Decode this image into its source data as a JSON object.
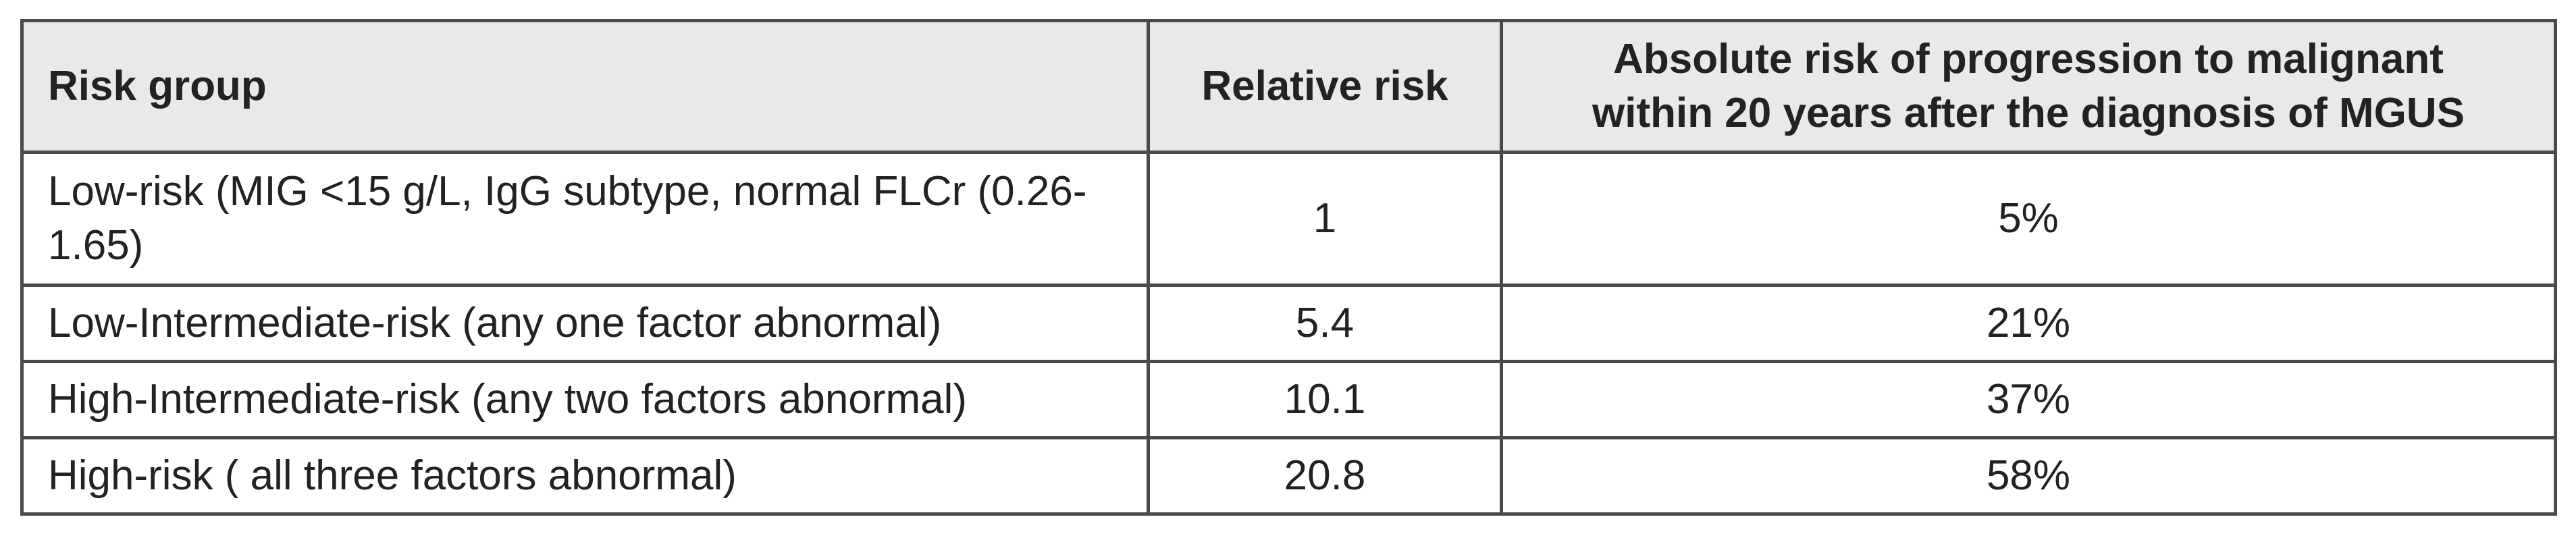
{
  "table": {
    "headers": {
      "group": "Risk group",
      "relative": "Relative risk",
      "absolute_line1": "Absolute risk of progression to malignant",
      "absolute_line2": "within 20 years after the diagnosis of MGUS"
    },
    "rows": [
      {
        "group": "Low-risk  (MIG <15 g/L, IgG  subtype, normal FLCr (0.26-1.65)",
        "relative": "1",
        "absolute": "5%"
      },
      {
        "group": "Low-Intermediate-risk (any one factor abnormal)",
        "relative": "5.4",
        "absolute": "21%"
      },
      {
        "group": "High-Intermediate-risk (any two factors abnormal)",
        "relative": "10.1",
        "absolute": "37%"
      },
      {
        "group": "High-risk ( all three factors abnormal)",
        "relative": "20.8",
        "absolute": "58%"
      }
    ]
  }
}
